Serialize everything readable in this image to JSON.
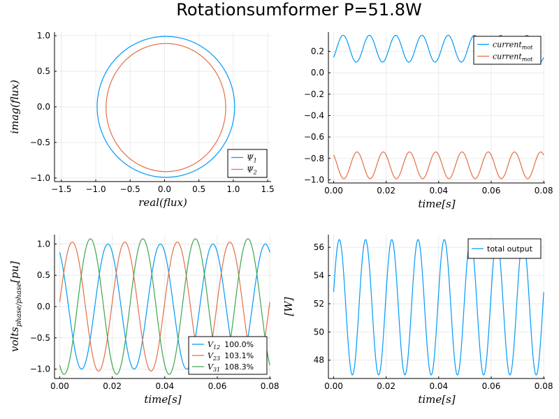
{
  "figure": {
    "title": "Rotationsumformer  P=51.8W"
  },
  "colors": {
    "series1": "#009af9",
    "series2": "#e26f46",
    "series3": "#3ea44e"
  },
  "chart_data": [
    {
      "type": "line",
      "id": "flux",
      "xlabel": "real(flux)",
      "ylabel": "imag(flux)",
      "xlim": [
        -1.6,
        1.55
      ],
      "ylim": [
        -1.05,
        1.05
      ],
      "xticks": [
        -1.5,
        -1.0,
        -0.5,
        0.0,
        0.5,
        1.0,
        1.5
      ],
      "xtick_labels": [
        "−1.5",
        "−1.0",
        "−0.5",
        "0.0",
        "0.5",
        "1.0",
        "1.5"
      ],
      "yticks": [
        -1.0,
        -0.5,
        0.0,
        0.5,
        1.0
      ],
      "ytick_labels": [
        "−1.0",
        "−0.5",
        "0.0",
        "0.5",
        "1.0"
      ],
      "grid": true,
      "legend_position": "bottom-right",
      "series": [
        {
          "name": "Ψ",
          "sub": "1",
          "shape": "circle",
          "center_x": 0.02,
          "center_y": 0.0,
          "radius_x": 1.0,
          "radius_y": 0.99
        },
        {
          "name": "Ψ",
          "sub": "2",
          "shape": "circle",
          "center_x": 0.02,
          "center_y": -0.01,
          "radius_x": 0.87,
          "radius_y": 0.9
        }
      ]
    },
    {
      "type": "line",
      "id": "current",
      "xlabel": "time[s]",
      "ylabel": "",
      "xlim": [
        -0.002,
        0.0805
      ],
      "ylim": [
        -1.03,
        0.38
      ],
      "xticks": [
        0.0,
        0.02,
        0.04,
        0.06,
        0.08
      ],
      "xtick_labels": [
        "0.00",
        "0.02",
        "0.04",
        "0.06",
        "0.08"
      ],
      "yticks": [
        -1.0,
        -0.8,
        -0.6,
        -0.4,
        -0.2,
        0.0,
        0.2
      ],
      "ytick_labels": [
        "−1.0",
        "−0.8",
        "−0.6",
        "−0.4",
        "−0.2",
        "0.0",
        "0.2"
      ],
      "grid": true,
      "legend_position": "top-right",
      "series": [
        {
          "name": "current",
          "sub": "mot",
          "wave": "sine",
          "offset": 0.225,
          "amplitude": 0.125,
          "frequency_hz": 100,
          "phase_deg": -40
        },
        {
          "name": "current",
          "sub": "mot",
          "wave": "sine",
          "offset": -0.865,
          "amplitude": 0.125,
          "frequency_hz": 100,
          "phase_deg": 130
        }
      ]
    },
    {
      "type": "line",
      "id": "voltage",
      "xlabel": "time[s]",
      "ylabel": "volts",
      "ylabel_sub": "phase/phase",
      "ylabel_suffix": "[pu]",
      "xlim": [
        -0.002,
        0.0805
      ],
      "ylim": [
        -1.15,
        1.15
      ],
      "xticks": [
        0.0,
        0.02,
        0.04,
        0.06,
        0.08
      ],
      "xtick_labels": [
        "0.00",
        "0.02",
        "0.04",
        "0.06",
        "0.08"
      ],
      "yticks": [
        -1.0,
        -0.5,
        0.0,
        0.5,
        1.0
      ],
      "ytick_labels": [
        "−1.0",
        "−0.5",
        "0.0",
        "0.5",
        "1.0"
      ],
      "grid": true,
      "legend_position": "bottom-right",
      "series": [
        {
          "name": "V",
          "sub": "12",
          "pct": "100.0%",
          "wave": "sine",
          "offset": 0.0,
          "amplitude": 1.0,
          "frequency_hz": 50,
          "phase_deg": 120
        },
        {
          "name": "V",
          "sub": "23",
          "pct": "103.1%",
          "wave": "sine",
          "offset": 0.0,
          "amplitude": 1.031,
          "frequency_hz": 50,
          "phase_deg": 4
        },
        {
          "name": "V",
          "sub": "31",
          "pct": "108.3%",
          "wave": "sine",
          "offset": 0.0,
          "amplitude": 1.083,
          "frequency_hz": 50,
          "phase_deg": 240
        }
      ]
    },
    {
      "type": "line",
      "id": "power",
      "xlabel": "time[s]",
      "ylabel": "[W]",
      "xlim": [
        -0.002,
        0.0805
      ],
      "ylim": [
        46.7,
        56.9
      ],
      "xticks": [
        0.0,
        0.02,
        0.04,
        0.06,
        0.08
      ],
      "xtick_labels": [
        "0.00",
        "0.02",
        "0.04",
        "0.06",
        "0.08"
      ],
      "yticks": [
        48,
        50,
        52,
        54,
        56
      ],
      "ytick_labels": [
        "48",
        "50",
        "52",
        "54",
        "56"
      ],
      "grid": true,
      "legend_position": "top-right",
      "series": [
        {
          "name": "total output",
          "wave": "sine",
          "offset": 51.75,
          "amplitude": 4.8,
          "frequency_hz": 100,
          "phase_deg": 13
        }
      ]
    }
  ]
}
